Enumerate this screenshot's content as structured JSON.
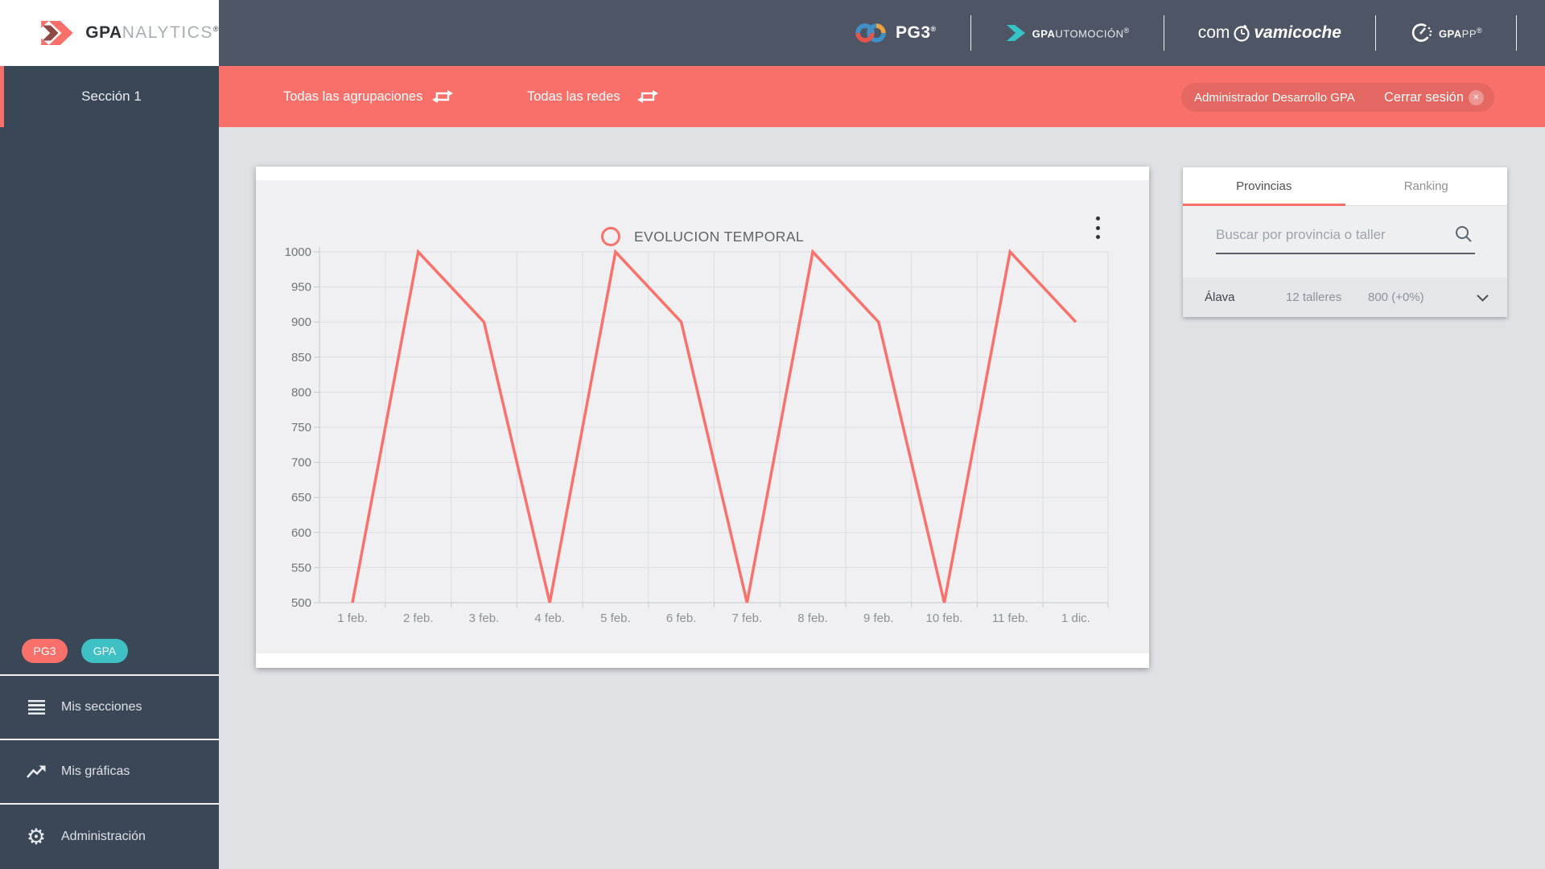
{
  "brand": {
    "name_bold": "GPA",
    "name_light": "NALYTICS",
    "registered": "®"
  },
  "header": {
    "pg3_label": "PG3",
    "pg3_reg": "®",
    "gpautomocion_bold": "GPA",
    "gpautomocion_rest": "UTOMOCIÓN",
    "gpautomocion_reg": "®",
    "comova_pre": "com",
    "comova_post": "vamicoche",
    "gpapp_bold": "GPA",
    "gpapp_rest": "PP",
    "gpapp_reg": "®"
  },
  "filter_bar": {
    "groupings_label": "Todas las agrupaciones",
    "networks_label": "Todas las redes",
    "user_name": "Administrador Desarrollo GPA",
    "logout_label": "Cerrar sesión",
    "logout_close_glyph": "✕"
  },
  "sidebar": {
    "section_label": "Sección 1",
    "badges": [
      {
        "label": "PG3"
      },
      {
        "label": "GPA"
      }
    ],
    "items": [
      {
        "label": "Mis secciones"
      },
      {
        "label": "Mis gráficas"
      },
      {
        "label": "Administración"
      }
    ],
    "gear_glyph": "⚙"
  },
  "chart_data": {
    "type": "line",
    "title": "EVOLUCION TEMPORAL",
    "categories": [
      "1 feb.",
      "2 feb.",
      "3 feb.",
      "4 feb.",
      "5 feb.",
      "6 feb.",
      "7 feb.",
      "8 feb.",
      "9 feb.",
      "10 feb.",
      "11 feb.",
      "1 dic."
    ],
    "values": [
      500,
      1000,
      900,
      500,
      1000,
      900,
      500,
      1000,
      900,
      500,
      1000,
      900
    ],
    "xlabel": "",
    "ylabel": "",
    "ylim": [
      500,
      1000
    ],
    "ytick_step": 50,
    "series_color": "#f8716b",
    "grid": true,
    "legend_position": "top-center"
  },
  "panel": {
    "tabs": [
      {
        "label": "Provincias",
        "active": true
      },
      {
        "label": "Ranking",
        "active": false
      }
    ],
    "search_placeholder": "Buscar por provincia o taller",
    "rows": [
      {
        "province": "Álava",
        "workshops": "12 talleres",
        "value": "800 (+0%)"
      }
    ]
  },
  "colors": {
    "accent_red": "#f9706a",
    "accent_teal": "#3fc0c4",
    "header_bg": "#4e5665",
    "sidebar_bg": "#3a4757",
    "page_bg": "#e0e1e5",
    "card_inner_bg": "#f0f0f3",
    "series": "#f8716b"
  }
}
